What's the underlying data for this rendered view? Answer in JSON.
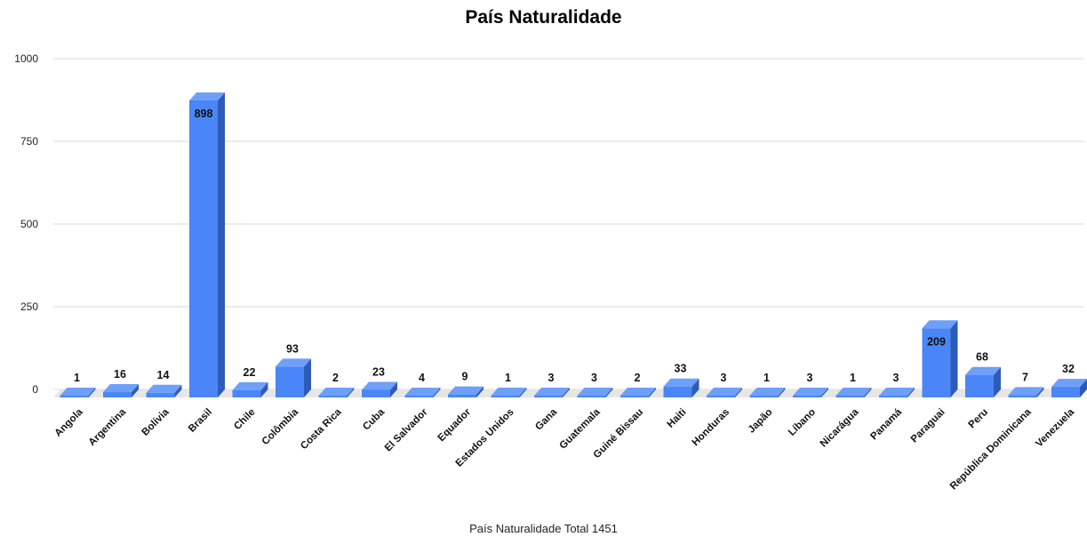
{
  "chart_data": {
    "type": "bar",
    "title": "País Naturalidade",
    "xlabel": "País Naturalidade Total 1451",
    "ylabel": "",
    "ylim": [
      0,
      1000
    ],
    "yticks": [
      0,
      250,
      500,
      750,
      1000
    ],
    "grid": true,
    "legend": "none",
    "categories": [
      "Angola",
      "Argentina",
      "Bolívia",
      "Brasil",
      "Chile",
      "Colômbia",
      "Costa Rica",
      "Cuba",
      "El Salvador",
      "Equador",
      "Estados Unidos",
      "Gana",
      "Guatemala",
      "Guiné Bissau",
      "Haiti",
      "Honduras",
      "Japão",
      "Líbano",
      "Nicarágua",
      "Panamá",
      "Paraguai",
      "Peru",
      "República Dominicana",
      "Venezuela"
    ],
    "values": [
      1,
      16,
      14,
      898,
      22,
      93,
      2,
      23,
      4,
      9,
      1,
      3,
      3,
      2,
      33,
      3,
      1,
      3,
      1,
      3,
      209,
      68,
      7,
      32
    ],
    "colors": {
      "front": "#4a86f7",
      "side": "#2f5bb8",
      "top": "#6fa0f9",
      "floor": "#e6e6e6",
      "grid": "#d9d9d9"
    }
  }
}
